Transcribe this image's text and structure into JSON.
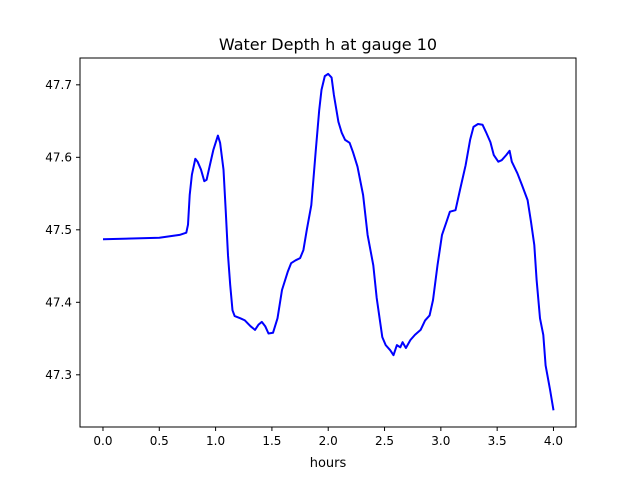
{
  "chart_data": {
    "type": "line",
    "title": "Water Depth h at gauge 10",
    "xlabel": "hours",
    "ylabel": "",
    "xlim": [
      -0.204,
      4.2
    ],
    "ylim": [
      47.228,
      47.737
    ],
    "xticks": [
      0.0,
      0.5,
      1.0,
      1.5,
      2.0,
      2.5,
      3.0,
      3.5,
      4.0
    ],
    "xtick_labels": [
      "0.0",
      "0.5",
      "1.0",
      "1.5",
      "2.0",
      "2.5",
      "3.0",
      "3.5",
      "4.0"
    ],
    "yticks": [
      47.3,
      47.4,
      47.5,
      47.6,
      47.7
    ],
    "ytick_labels": [
      "47.3",
      "47.4",
      "47.5",
      "47.6",
      "47.7"
    ],
    "grid": false,
    "series": [
      {
        "name": "h",
        "color": "#0000ff",
        "x": [
          0,
          0.5,
          0.68,
          0.74,
          0.755,
          0.77,
          0.79,
          0.82,
          0.84,
          0.87,
          0.9,
          0.92,
          0.95,
          0.98,
          1.02,
          1.04,
          1.07,
          1.09,
          1.11,
          1.13,
          1.15,
          1.17,
          1.22,
          1.26,
          1.31,
          1.35,
          1.38,
          1.41,
          1.44,
          1.47,
          1.51,
          1.55,
          1.59,
          1.64,
          1.67,
          1.71,
          1.75,
          1.78,
          1.81,
          1.85,
          1.89,
          1.92,
          1.94,
          1.97,
          2.0,
          2.03,
          2.05,
          2.09,
          2.12,
          2.15,
          2.19,
          2.22,
          2.26,
          2.31,
          2.35,
          2.4,
          2.43,
          2.48,
          2.51,
          2.55,
          2.58,
          2.61,
          2.64,
          2.66,
          2.69,
          2.73,
          2.77,
          2.82,
          2.86,
          2.9,
          2.93,
          2.97,
          3.01,
          3.05,
          3.08,
          3.13,
          3.17,
          3.22,
          3.26,
          3.29,
          3.33,
          3.37,
          3.4,
          3.44,
          3.47,
          3.51,
          3.54,
          3.58,
          3.61,
          3.63,
          3.68,
          3.72,
          3.77,
          3.8,
          3.83,
          3.85,
          3.88,
          3.91,
          3.93,
          3.97,
          4.0
        ],
        "y": [
          47.487,
          47.489,
          47.493,
          47.496,
          47.507,
          47.548,
          47.576,
          47.598,
          47.594,
          47.583,
          47.567,
          47.569,
          47.59,
          47.61,
          47.63,
          47.62,
          47.583,
          47.527,
          47.465,
          47.424,
          47.389,
          47.381,
          47.378,
          47.375,
          47.367,
          47.362,
          47.369,
          47.373,
          47.367,
          47.357,
          47.358,
          47.378,
          47.417,
          47.442,
          47.454,
          47.458,
          47.461,
          47.472,
          47.5,
          47.534,
          47.61,
          47.665,
          47.693,
          47.712,
          47.715,
          47.71,
          47.686,
          47.649,
          47.634,
          47.624,
          47.62,
          47.607,
          47.587,
          47.548,
          47.493,
          47.451,
          47.406,
          47.352,
          47.341,
          47.334,
          47.327,
          47.341,
          47.338,
          47.345,
          47.337,
          47.348,
          47.355,
          47.362,
          47.375,
          47.382,
          47.403,
          47.451,
          47.493,
          47.511,
          47.525,
          47.527,
          47.555,
          47.589,
          47.624,
          47.642,
          47.646,
          47.645,
          47.635,
          47.621,
          47.603,
          47.594,
          47.596,
          47.603,
          47.609,
          47.594,
          47.578,
          47.562,
          47.541,
          47.511,
          47.479,
          47.431,
          47.378,
          47.355,
          47.313,
          47.279,
          47.251
        ]
      }
    ]
  }
}
